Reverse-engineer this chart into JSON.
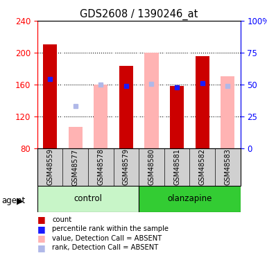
{
  "title": "GDS2608 / 1390246_at",
  "samples": [
    "GSM48559",
    "GSM48577",
    "GSM48578",
    "GSM48579",
    "GSM48580",
    "GSM48581",
    "GSM48582",
    "GSM48583"
  ],
  "red_bars": [
    210,
    null,
    null,
    183,
    null,
    158,
    196,
    null
  ],
  "pink_bars": [
    null,
    107,
    160,
    null,
    200,
    null,
    null,
    170
  ],
  "blue_squares_value": [
    167,
    133,
    160,
    158,
    161,
    156,
    162,
    158
  ],
  "blue_squares_absent": [
    false,
    true,
    true,
    false,
    true,
    false,
    false,
    true
  ],
  "ymin": 80,
  "ymax": 240,
  "yticks_left": [
    80,
    120,
    160,
    200,
    240
  ],
  "yticks_right": [
    0,
    25,
    50,
    75,
    100
  ],
  "bar_width": 0.55,
  "red_color": "#cc0000",
  "pink_color": "#ffb3b3",
  "blue_solid_color": "#1a1aff",
  "blue_light_color": "#b0b8e8",
  "control_bg": "#c8f5c8",
  "olanzapine_bg": "#33cc33",
  "sample_row_bg": "#d0d0d0",
  "grid_color": "#000000",
  "legend_items": [
    {
      "color": "#cc0000",
      "label": "count"
    },
    {
      "color": "#1a1aff",
      "label": "percentile rank within the sample"
    },
    {
      "color": "#ffb3b3",
      "label": "value, Detection Call = ABSENT"
    },
    {
      "color": "#b0b8e8",
      "label": "rank, Detection Call = ABSENT"
    }
  ]
}
